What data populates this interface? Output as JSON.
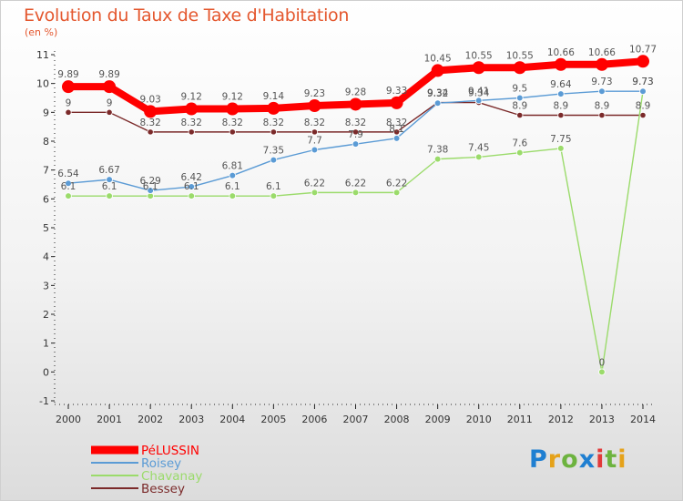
{
  "chart_data": {
    "type": "line",
    "title": "Evolution du Taux de Taxe d'Habitation",
    "subtitle": "(en %)",
    "x": [
      2000,
      2001,
      2002,
      2003,
      2004,
      2005,
      2006,
      2007,
      2008,
      2009,
      2010,
      2011,
      2012,
      2013,
      2014
    ],
    "ylim": [
      -1,
      11
    ],
    "yticks": [
      -1,
      0,
      1,
      2,
      3,
      4,
      5,
      6,
      7,
      8,
      9,
      10,
      11
    ],
    "grid": false,
    "legend_position": "bottom-left",
    "series": [
      {
        "name": "PéLUSSIN",
        "color": "#ff0000",
        "values": [
          9.89,
          9.89,
          9.03,
          9.12,
          9.12,
          9.14,
          9.23,
          9.28,
          9.33,
          10.45,
          10.55,
          10.55,
          10.66,
          10.66,
          10.77
        ],
        "labels": [
          "9.89",
          "9.89",
          "9.03",
          "9.12",
          "9.12",
          "9.14",
          "9.23",
          "9.28",
          "9.33",
          "10.45",
          "10.55",
          "10.55",
          "10.66",
          "10.66",
          "10.77"
        ]
      },
      {
        "name": "Roisey",
        "color": "#5b9bd5",
        "values": [
          6.54,
          6.67,
          6.29,
          6.42,
          6.81,
          7.35,
          7.7,
          7.9,
          8.1,
          9.32,
          9.41,
          9.5,
          9.64,
          9.73,
          9.73
        ],
        "labels": [
          "6.54",
          "6.67",
          "6.29",
          "6.42",
          "6.81",
          "7.35",
          "7.7",
          "7.9",
          "8.1",
          "9.32",
          "9.41",
          "9.5",
          "9.64",
          "9.73",
          "9.73"
        ]
      },
      {
        "name": "Chavanay",
        "color": "#9bdb6b",
        "values": [
          6.1,
          6.1,
          6.1,
          6.1,
          6.1,
          6.1,
          6.22,
          6.22,
          6.22,
          7.38,
          7.45,
          7.6,
          7.75,
          0,
          9.73
        ],
        "labels": [
          "6.1",
          "6.1",
          "6.1",
          "6.1",
          "6.1",
          "6.1",
          "6.22",
          "6.22",
          "6.22",
          "7.38",
          "7.45",
          "7.6",
          "7.75",
          "0",
          "9.73"
        ]
      },
      {
        "name": "Bessey",
        "color": "#7b2a2a",
        "values": [
          9,
          9,
          8.32,
          8.32,
          8.32,
          8.32,
          8.32,
          8.32,
          8.32,
          9.34,
          9.34,
          8.9,
          8.9,
          8.9,
          8.9
        ],
        "labels": [
          "9",
          "9",
          "8.32",
          "8.32",
          "8.32",
          "8.32",
          "8.32",
          "8.32",
          "8.32",
          "9.34",
          "9.34",
          "8.9",
          "8.9",
          "8.9",
          "8.9"
        ]
      }
    ]
  },
  "logo": {
    "text": "Proxiti",
    "colors": [
      "#1f7fd1",
      "#e5a21a",
      "#6db33f",
      "#1f7fd1",
      "#e23a3a",
      "#6db33f",
      "#e5a21a"
    ]
  }
}
